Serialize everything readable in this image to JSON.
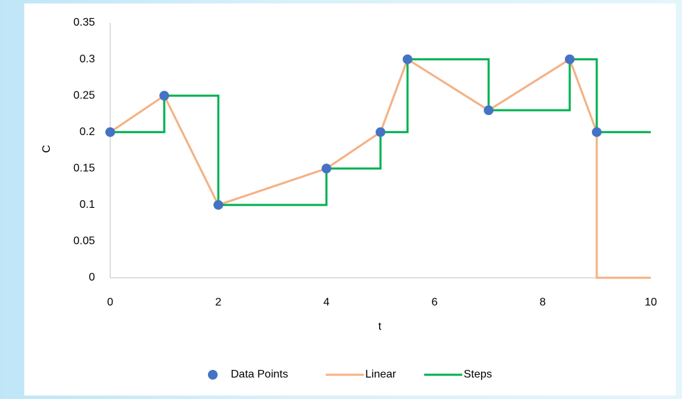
{
  "chart_data": {
    "type": "scatter",
    "x_label": "t",
    "y_label": "C",
    "xlim": [
      0,
      10
    ],
    "xticks": [
      0,
      2,
      4,
      6,
      8,
      10
    ],
    "ylim": [
      0,
      0.35
    ],
    "yticks": [
      0,
      0.05,
      0.1,
      0.15,
      0.2,
      0.25,
      0.3,
      0.35
    ],
    "grid": false,
    "legend": "bottom",
    "series": [
      {
        "name": "Data Points",
        "type": "scatter",
        "color": "#4472c4",
        "x": [
          0,
          1,
          2,
          4,
          5,
          5.5,
          7,
          8.5,
          9
        ],
        "values": [
          0.2,
          0.25,
          0.1,
          0.15,
          0.2,
          0.3,
          0.23,
          0.3,
          0.2
        ]
      },
      {
        "name": "Linear",
        "type": "line",
        "color": "#f4b183",
        "x": [
          0,
          1,
          2,
          4,
          5,
          5.5,
          7,
          8.5,
          9,
          9,
          10
        ],
        "values": [
          0.2,
          0.25,
          0.1,
          0.15,
          0.2,
          0.3,
          0.23,
          0.3,
          0.2,
          0,
          0
        ]
      },
      {
        "name": "Steps",
        "type": "line",
        "color": "#00b050",
        "x": [
          0,
          1,
          1,
          2,
          2,
          4,
          4,
          5,
          5,
          5.5,
          5.5,
          7,
          7,
          8.5,
          8.5,
          9,
          9,
          10
        ],
        "values": [
          0.2,
          0.2,
          0.25,
          0.25,
          0.1,
          0.1,
          0.15,
          0.15,
          0.2,
          0.2,
          0.3,
          0.3,
          0.23,
          0.23,
          0.3,
          0.3,
          0.2,
          0.2
        ]
      }
    ]
  }
}
